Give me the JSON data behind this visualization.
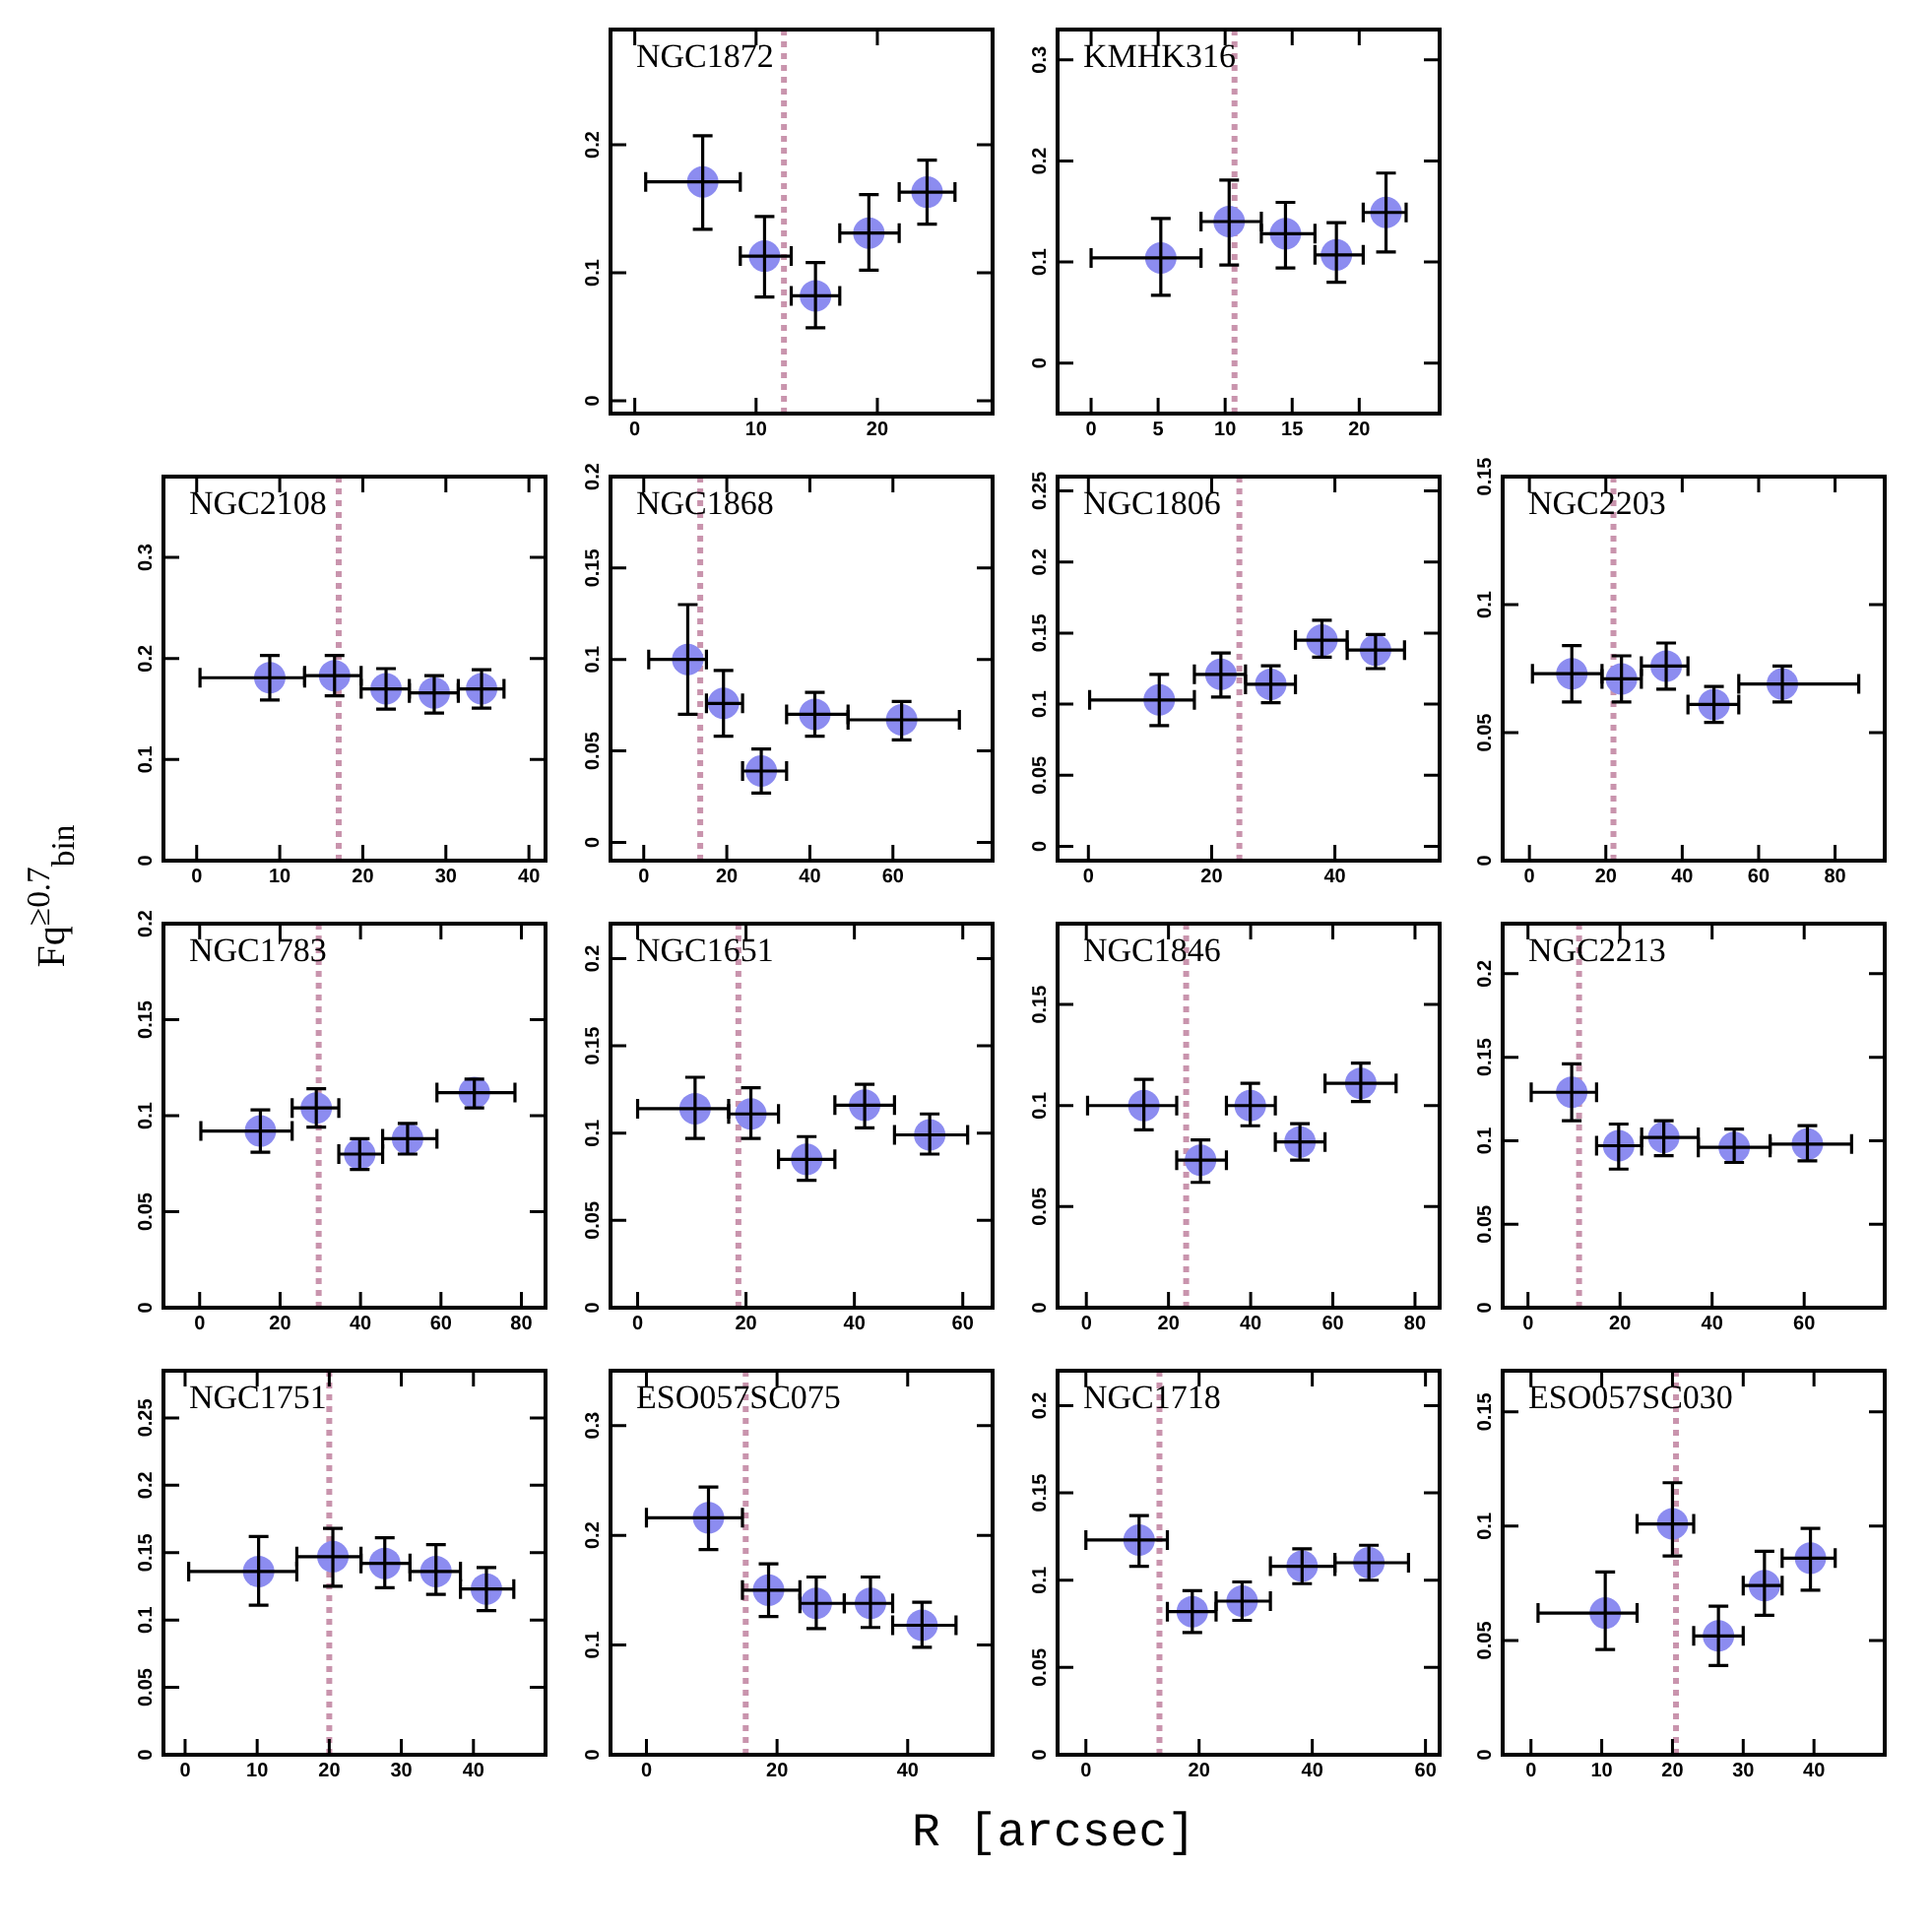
{
  "chart_data": [
    {
      "type": "scatter",
      "title": "NGC1872",
      "marker": "circle",
      "x": [
        5.6,
        10.7,
        14.9,
        19.3,
        24.1
      ],
      "values": [
        0.171,
        0.113,
        0.082,
        0.131,
        0.163
      ],
      "color": "#8c8cf0",
      "xerrors": [
        [
          0.9,
          8.7
        ],
        [
          8.7,
          12.9
        ],
        [
          12.9,
          16.9
        ],
        [
          16.9,
          21.8
        ],
        [
          21.8,
          26.4
        ]
      ],
      "errors": [
        [
          0.134,
          0.207
        ],
        [
          0.081,
          0.144
        ],
        [
          0.057,
          0.108
        ],
        [
          0.102,
          0.161
        ],
        [
          0.138,
          0.188
        ]
      ],
      "ref_lines": [
        {
          "axis": "x",
          "value": 12.3,
          "color": "#c994ad",
          "line_style": "dotted"
        }
      ],
      "xlim": [
        -2,
        29.5
      ],
      "xticks": [
        0,
        10,
        20
      ],
      "ylim": [
        -0.01,
        0.29
      ],
      "yticks": [
        0,
        0.1,
        0.2
      ]
    },
    {
      "type": "scatter",
      "title": "KMHK316",
      "marker": "circle",
      "x": [
        5.2,
        10.3,
        14.5,
        18.3,
        22.0
      ],
      "values": [
        0.104,
        0.14,
        0.128,
        0.107,
        0.149
      ],
      "color": "#8c8cf0",
      "xerrors": [
        [
          0,
          8.2
        ],
        [
          8.2,
          12.7
        ],
        [
          12.7,
          16.7
        ],
        [
          16.7,
          20.3
        ],
        [
          20.3,
          23.5
        ]
      ],
      "errors": [
        [
          0.067,
          0.143
        ],
        [
          0.097,
          0.181
        ],
        [
          0.094,
          0.159
        ],
        [
          0.08,
          0.139
        ],
        [
          0.11,
          0.188
        ]
      ],
      "ref_lines": [
        {
          "axis": "x",
          "value": 10.7,
          "color": "#c994ad",
          "line_style": "dotted"
        }
      ],
      "xlim": [
        -2.5,
        26
      ],
      "xticks": [
        0,
        5,
        10,
        15,
        20
      ],
      "ylim": [
        -0.05,
        0.33
      ],
      "yticks": [
        0,
        0.1,
        0.2,
        0.3
      ]
    },
    {
      "type": "scatter",
      "title": "NGC2108",
      "ylabel": "Fq$^{≥0.7}$$_{bin}$",
      "marker": "circle",
      "x": [
        8.8,
        16.6,
        22.8,
        28.6,
        34.3
      ],
      "values": [
        0.181,
        0.183,
        0.17,
        0.166,
        0.17
      ],
      "color": "#8c8cf0",
      "xerrors": [
        [
          0.4,
          13.0
        ],
        [
          13.0,
          19.8
        ],
        [
          19.8,
          25.6
        ],
        [
          25.6,
          31.5
        ],
        [
          31.5,
          37.0
        ]
      ],
      "errors": [
        [
          0.159,
          0.203
        ],
        [
          0.163,
          0.203
        ],
        [
          0.15,
          0.19
        ],
        [
          0.146,
          0.183
        ],
        [
          0.151,
          0.189
        ]
      ],
      "ref_lines": [
        {
          "axis": "x",
          "value": 17.1,
          "color": "#c994ad",
          "line_style": "dotted"
        }
      ],
      "xlim": [
        -4,
        42
      ],
      "xticks": [
        0,
        10,
        20,
        30,
        40
      ],
      "ylim": [
        0,
        0.38
      ],
      "yticks": [
        0,
        0.1,
        0.2,
        0.3
      ]
    },
    {
      "type": "scatter",
      "title": "NGC1868",
      "marker": "circle",
      "x": [
        10.6,
        19.2,
        28.3,
        41.2,
        62.1
      ],
      "values": [
        0.1,
        0.076,
        0.039,
        0.07,
        0.067
      ],
      "color": "#8c8cf0",
      "xerrors": [
        [
          1.2,
          15.1
        ],
        [
          15.1,
          23.8
        ],
        [
          23.8,
          34.4
        ],
        [
          34.4,
          49.2
        ],
        [
          49.2,
          76.0
        ]
      ],
      "errors": [
        [
          0.07,
          0.13
        ],
        [
          0.058,
          0.094
        ],
        [
          0.027,
          0.051
        ],
        [
          0.058,
          0.082
        ],
        [
          0.056,
          0.077
        ]
      ],
      "ref_lines": [
        {
          "axis": "x",
          "value": 13.6,
          "color": "#c994ad",
          "line_style": "dotted"
        }
      ],
      "xlim": [
        -8,
        84
      ],
      "xticks": [
        0,
        20,
        40,
        60
      ],
      "ylim": [
        -0.01,
        0.2
      ],
      "yticks": [
        0,
        0.05,
        0.1,
        0.15,
        0.2
      ]
    },
    {
      "type": "scatter",
      "title": "NGC1806",
      "marker": "circle",
      "x": [
        11.5,
        21.5,
        29.6,
        37.9,
        46.6
      ],
      "values": [
        0.103,
        0.121,
        0.114,
        0.145,
        0.138
      ],
      "color": "#8c8cf0",
      "xerrors": [
        [
          0.2,
          17.2
        ],
        [
          17.2,
          25.5
        ],
        [
          25.5,
          33.6
        ],
        [
          33.6,
          42.0
        ],
        [
          42.0,
          51.3
        ]
      ],
      "errors": [
        [
          0.085,
          0.121
        ],
        [
          0.105,
          0.136
        ],
        [
          0.101,
          0.127
        ],
        [
          0.133,
          0.159
        ],
        [
          0.125,
          0.149
        ]
      ],
      "ref_lines": [
        {
          "axis": "x",
          "value": 24.5,
          "color": "#c994ad",
          "line_style": "dotted"
        }
      ],
      "xlim": [
        -5,
        57
      ],
      "xticks": [
        0,
        20,
        40
      ],
      "ylim": [
        -0.01,
        0.26
      ],
      "yticks": [
        0,
        0.05,
        0.1,
        0.15,
        0.2,
        0.25
      ]
    },
    {
      "type": "scatter",
      "title": "NGC2203",
      "marker": "circle",
      "x": [
        11.1,
        24.1,
        35.8,
        48.3,
        66.2
      ],
      "values": [
        0.073,
        0.071,
        0.076,
        0.061,
        0.069
      ],
      "color": "#8c8cf0",
      "xerrors": [
        [
          0.8,
          19.0
        ],
        [
          19.0,
          29.3
        ],
        [
          29.3,
          41.5
        ],
        [
          41.5,
          54.8
        ],
        [
          54.8,
          86.2
        ]
      ],
      "errors": [
        [
          0.062,
          0.084
        ],
        [
          0.062,
          0.08
        ],
        [
          0.067,
          0.085
        ],
        [
          0.054,
          0.068
        ],
        [
          0.062,
          0.076
        ]
      ],
      "ref_lines": [
        {
          "axis": "x",
          "value": 22.0,
          "color": "#c994ad",
          "line_style": "dotted"
        }
      ],
      "xlim": [
        -7,
        93
      ],
      "xticks": [
        0,
        20,
        40,
        60,
        80
      ],
      "ylim": [
        0,
        0.15
      ],
      "yticks": [
        0,
        0.05,
        0.1,
        0.15
      ]
    },
    {
      "type": "scatter",
      "title": "NGC1783",
      "marker": "circle",
      "x": [
        15.1,
        29.0,
        39.8,
        51.7,
        68.3
      ],
      "values": [
        0.092,
        0.104,
        0.08,
        0.088,
        0.112
      ],
      "color": "#8c8cf0",
      "xerrors": [
        [
          0.3,
          23.0
        ],
        [
          23.0,
          34.6
        ],
        [
          34.6,
          45.5
        ],
        [
          45.5,
          59.0
        ],
        [
          59.0,
          78.4
        ]
      ],
      "errors": [
        [
          0.081,
          0.103
        ],
        [
          0.094,
          0.114
        ],
        [
          0.072,
          0.088
        ],
        [
          0.08,
          0.096
        ],
        [
          0.104,
          0.119
        ]
      ],
      "ref_lines": [
        {
          "axis": "x",
          "value": 29.6,
          "color": "#c994ad",
          "line_style": "dotted"
        }
      ],
      "xlim": [
        -9,
        86
      ],
      "xticks": [
        0,
        20,
        40,
        60,
        80
      ],
      "ylim": [
        0,
        0.2
      ],
      "yticks": [
        0,
        0.05,
        0.1,
        0.15,
        0.2
      ]
    },
    {
      "type": "scatter",
      "title": "NGC1651",
      "marker": "circle",
      "x": [
        10.6,
        20.9,
        31.2,
        41.9,
        53.9
      ],
      "values": [
        0.114,
        0.111,
        0.085,
        0.116,
        0.099
      ],
      "color": "#8c8cf0",
      "xerrors": [
        [
          0,
          16.8
        ],
        [
          16.8,
          26.0
        ],
        [
          26.0,
          36.4
        ],
        [
          36.4,
          47.4
        ],
        [
          47.4,
          60.9
        ]
      ],
      "errors": [
        [
          0.097,
          0.132
        ],
        [
          0.097,
          0.126
        ],
        [
          0.073,
          0.098
        ],
        [
          0.103,
          0.128
        ],
        [
          0.088,
          0.111
        ]
      ],
      "ref_lines": [
        {
          "axis": "x",
          "value": 18.6,
          "color": "#c994ad",
          "line_style": "dotted"
        }
      ],
      "xlim": [
        -5,
        65.5
      ],
      "xticks": [
        0,
        20,
        40,
        60
      ],
      "ylim": [
        0,
        0.22
      ],
      "yticks": [
        0,
        0.05,
        0.1,
        0.15,
        0.2
      ]
    },
    {
      "type": "scatter",
      "title": "NGC1846",
      "marker": "circle",
      "x": [
        14.0,
        27.8,
        39.9,
        52.0,
        66.8
      ],
      "values": [
        0.1,
        0.073,
        0.1,
        0.082,
        0.111
      ],
      "color": "#8c8cf0",
      "xerrors": [
        [
          0.3,
          22.0
        ],
        [
          22.0,
          34.1
        ],
        [
          34.1,
          46.0
        ],
        [
          46.0,
          58.1
        ],
        [
          58.1,
          75.4
        ]
      ],
      "errors": [
        [
          0.088,
          0.113
        ],
        [
          0.062,
          0.083
        ],
        [
          0.09,
          0.111
        ],
        [
          0.073,
          0.091
        ],
        [
          0.102,
          0.121
        ]
      ],
      "ref_lines": [
        {
          "axis": "x",
          "value": 24.3,
          "color": "#c994ad",
          "line_style": "dotted"
        }
      ],
      "xlim": [
        -7,
        86
      ],
      "xticks": [
        0,
        20,
        40,
        60,
        80
      ],
      "ylim": [
        0,
        0.19
      ],
      "yticks": [
        0,
        0.05,
        0.1,
        0.15
      ]
    },
    {
      "type": "scatter",
      "title": "NGC2213",
      "marker": "circle",
      "x": [
        9.5,
        19.7,
        29.5,
        44.8,
        60.7
      ],
      "values": [
        0.129,
        0.097,
        0.102,
        0.096,
        0.098
      ],
      "color": "#8c8cf0",
      "xerrors": [
        [
          0.7,
          14.9
        ],
        [
          14.9,
          24.7
        ],
        [
          24.7,
          37.0
        ],
        [
          37.0,
          52.6
        ],
        [
          52.6,
          70.3
        ]
      ],
      "errors": [
        [
          0.112,
          0.146
        ],
        [
          0.083,
          0.11
        ],
        [
          0.091,
          0.112
        ],
        [
          0.087,
          0.107
        ],
        [
          0.088,
          0.109
        ]
      ],
      "ref_lines": [
        {
          "axis": "x",
          "value": 11.1,
          "color": "#c994ad",
          "line_style": "dotted"
        }
      ],
      "xlim": [
        -5.5,
        77.5
      ],
      "xticks": [
        0,
        20,
        40,
        60
      ],
      "ylim": [
        0,
        0.23
      ],
      "yticks": [
        0,
        0.05,
        0.1,
        0.15,
        0.2
      ]
    },
    {
      "type": "scatter",
      "title": "NGC1751",
      "marker": "circle",
      "x": [
        10.2,
        20.5,
        27.7,
        34.8,
        41.8
      ],
      "values": [
        0.136,
        0.147,
        0.142,
        0.136,
        0.123
      ],
      "color": "#8c8cf0",
      "xerrors": [
        [
          0.5,
          15.5
        ],
        [
          15.5,
          24.4
        ],
        [
          24.4,
          31.2
        ],
        [
          31.2,
          38.2
        ],
        [
          38.2,
          45.6
        ]
      ],
      "errors": [
        [
          0.111,
          0.162
        ],
        [
          0.125,
          0.168
        ],
        [
          0.124,
          0.161
        ],
        [
          0.119,
          0.156
        ],
        [
          0.107,
          0.139
        ]
      ],
      "ref_lines": [
        {
          "axis": "x",
          "value": 20,
          "color": "#c994ad",
          "line_style": "dotted"
        }
      ],
      "xlim": [
        -3,
        50
      ],
      "xticks": [
        0,
        10,
        20,
        30,
        40
      ],
      "ylim": [
        0,
        0.285
      ],
      "yticks": [
        0,
        0.05,
        0.1,
        0.15,
        0.2,
        0.25
      ]
    },
    {
      "type": "scatter",
      "title": "ESO057SC075",
      "xlabel": "R [arcsec]",
      "marker": "circle",
      "x": [
        9.5,
        18.7,
        26.0,
        34.3,
        42.2
      ],
      "values": [
        0.216,
        0.15,
        0.138,
        0.138,
        0.118
      ],
      "color": "#8c8cf0",
      "xerrors": [
        [
          0,
          14.7
        ],
        [
          14.7,
          23.5
        ],
        [
          23.5,
          30.3
        ],
        [
          30.3,
          37.7
        ],
        [
          37.7,
          47.4
        ]
      ],
      "errors": [
        [
          0.187,
          0.244
        ],
        [
          0.126,
          0.174
        ],
        [
          0.115,
          0.162
        ],
        [
          0.116,
          0.162
        ],
        [
          0.098,
          0.139
        ]
      ],
      "ref_lines": [
        {
          "axis": "x",
          "value": 15.2,
          "color": "#c994ad",
          "line_style": "dotted"
        }
      ],
      "xlim": [
        -5.5,
        53
      ],
      "xticks": [
        0,
        20,
        40
      ],
      "ylim": [
        0,
        0.35
      ],
      "yticks": [
        0,
        0.1,
        0.2,
        0.3
      ]
    },
    {
      "type": "scatter",
      "title": "NGC1718",
      "marker": "circle",
      "x": [
        9.4,
        18.8,
        27.6,
        38.2,
        50.0
      ],
      "values": [
        0.123,
        0.082,
        0.088,
        0.108,
        0.11
      ],
      "color": "#8c8cf0",
      "xerrors": [
        [
          0,
          14.4
        ],
        [
          14.4,
          23.0
        ],
        [
          23.0,
          32.6
        ],
        [
          32.6,
          44.0
        ],
        [
          44.0,
          57.0
        ]
      ],
      "errors": [
        [
          0.108,
          0.137
        ],
        [
          0.07,
          0.094
        ],
        [
          0.077,
          0.099
        ],
        [
          0.098,
          0.118
        ],
        [
          0.1,
          0.12
        ]
      ],
      "ref_lines": [
        {
          "axis": "x",
          "value": 13.0,
          "color": "#c994ad",
          "line_style": "dotted"
        }
      ],
      "xlim": [
        -5,
        62.5
      ],
      "xticks": [
        0,
        20,
        40,
        60
      ],
      "ylim": [
        0,
        0.22
      ],
      "yticks": [
        0,
        0.05,
        0.1,
        0.15,
        0.2
      ]
    },
    {
      "type": "scatter",
      "title": "ESO057SC030",
      "marker": "circle",
      "x": [
        10.5,
        20.0,
        26.5,
        33.0,
        39.5
      ],
      "values": [
        0.062,
        0.101,
        0.052,
        0.074,
        0.086
      ],
      "color": "#8c8cf0",
      "xerrors": [
        [
          1.0,
          15.0
        ],
        [
          15.0,
          23.0
        ],
        [
          23.0,
          30.0
        ],
        [
          30.0,
          35.5
        ],
        [
          35.5,
          43.0
        ]
      ],
      "errors": [
        [
          0.046,
          0.08
        ],
        [
          0.087,
          0.119
        ],
        [
          0.039,
          0.065
        ],
        [
          0.061,
          0.089
        ],
        [
          0.072,
          0.099
        ]
      ],
      "ref_lines": [
        {
          "axis": "x",
          "value": 20.5,
          "color": "#c994ad",
          "line_style": "dotted"
        }
      ],
      "xlim": [
        -4,
        50
      ],
      "xticks": [
        0,
        10,
        20,
        30,
        40
      ],
      "ylim": [
        0,
        0.168
      ],
      "yticks": [
        0,
        0.05,
        0.1,
        0.15
      ]
    }
  ]
}
